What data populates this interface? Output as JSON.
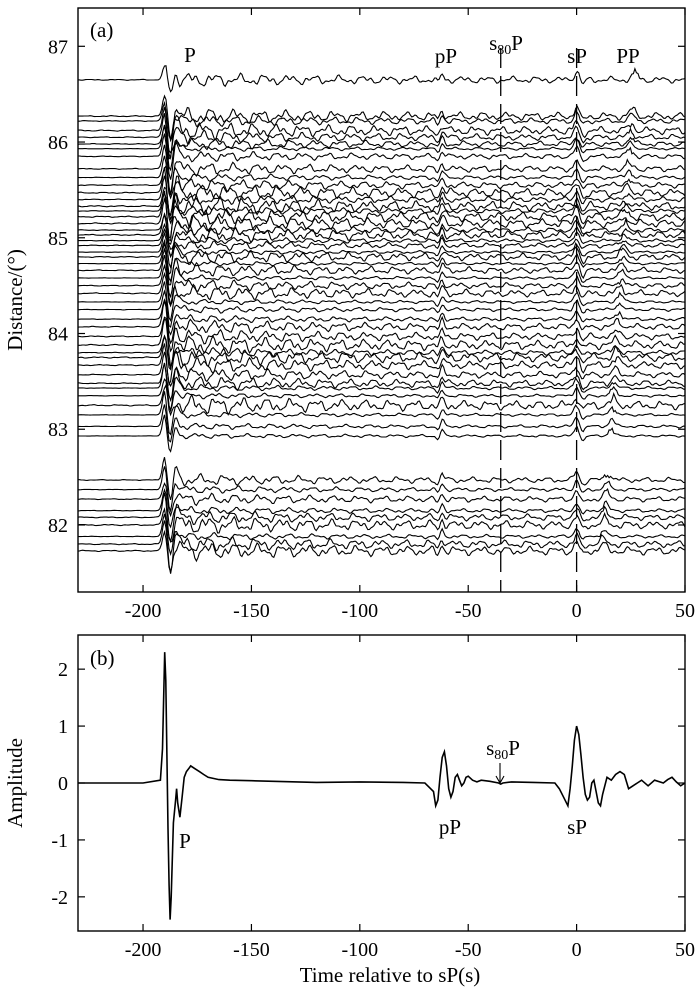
{
  "chart_data": [
    {
      "panel": "(a)",
      "type": "line",
      "ylabel": "Distance/(°)",
      "xlim": [
        -230,
        50
      ],
      "ylim": [
        81.3,
        87.4
      ],
      "xticks": [
        -200,
        -150,
        -100,
        -50,
        0,
        50
      ],
      "yticks": [
        82,
        83,
        84,
        85,
        86,
        87
      ],
      "trace_offsets_deg": [
        86.65,
        86.27,
        86.22,
        86.12,
        86.05,
        85.98,
        85.93,
        85.85,
        85.72,
        85.63,
        85.55,
        85.47,
        85.4,
        85.33,
        85.28,
        85.22,
        85.15,
        85.08,
        85.03,
        84.97,
        84.92,
        84.85,
        84.8,
        84.73,
        84.66,
        84.58,
        84.5,
        84.42,
        84.33,
        84.25,
        84.15,
        84.07,
        83.97,
        83.88,
        83.8,
        83.75,
        83.67,
        83.57,
        83.48,
        83.43,
        83.35,
        83.25,
        83.15,
        83.03,
        82.93,
        82.47,
        82.37,
        82.27,
        82.15,
        82.08,
        82.0,
        81.88,
        81.8,
        81.73
      ],
      "phase_times_s": {
        "P": -190,
        "pP": -62,
        "s80P": -35,
        "sP": 0,
        "PP": 22
      },
      "phase_labels": [
        {
          "text": "P",
          "key": "P"
        },
        {
          "text": "pP",
          "key": "pP"
        },
        {
          "text": "s",
          "sub": "80",
          "tail": "P",
          "key": "s80P"
        },
        {
          "text": "sP",
          "key": "sP"
        },
        {
          "text": "PP",
          "key": "PP"
        }
      ],
      "dashed_markers_s": [
        -35,
        0
      ]
    },
    {
      "panel": "(b)",
      "type": "line",
      "xlabel": "Time relative to sP(s)",
      "ylabel": "Amplitude",
      "xlim": [
        -230,
        50
      ],
      "ylim": [
        -2.6,
        2.6
      ],
      "xticks": [
        -200,
        -150,
        -100,
        -50,
        0,
        50
      ],
      "yticks": [
        -2,
        -1,
        0,
        1,
        2
      ],
      "series": [
        {
          "x": [
            -230,
            -200,
            -192,
            -191,
            -190,
            -189.5,
            -189,
            -188.5,
            -188,
            -187.5,
            -187,
            -186,
            -185,
            -184.5,
            -184,
            -183,
            -182,
            -181,
            -180,
            -179,
            -178,
            -176,
            -174,
            -172,
            -170,
            -165,
            -160,
            -150,
            -140,
            -120,
            -100,
            -80,
            -70,
            -66,
            -65,
            -64,
            -63,
            -62,
            -61,
            -60,
            -59,
            -58,
            -57,
            -56,
            -55,
            -54,
            -53,
            -52,
            -51,
            -50,
            -48,
            -46,
            -44,
            -40,
            -36,
            -35,
            -34,
            -30,
            -20,
            -10,
            -8,
            -6,
            -4,
            -3,
            -2,
            -1,
            0,
            1,
            2,
            3,
            4,
            5,
            6,
            7,
            8,
            9,
            10,
            11,
            12,
            14,
            16,
            18,
            20,
            22,
            24,
            26,
            28,
            30,
            33,
            36,
            40,
            42,
            44,
            46,
            48,
            50
          ],
          "y": [
            0,
            0,
            0.05,
            0.6,
            2.3,
            1.8,
            0.5,
            -0.8,
            -1.8,
            -2.4,
            -2.0,
            -0.7,
            -0.3,
            -0.1,
            -0.35,
            -0.6,
            -0.25,
            0.1,
            0.2,
            0.25,
            0.3,
            0.25,
            0.2,
            0.15,
            0.1,
            0.06,
            0.05,
            0.04,
            0.03,
            0.01,
            0.02,
            0.01,
            0.0,
            -0.15,
            -0.4,
            -0.3,
            0.1,
            0.45,
            0.55,
            0.3,
            -0.1,
            -0.25,
            -0.15,
            0.1,
            0.15,
            0.05,
            -0.05,
            0.0,
            0.1,
            0.12,
            0.05,
            0.02,
            0.05,
            0.03,
            0.0,
            -0.02,
            0.0,
            0.02,
            0.01,
            0.0,
            -0.1,
            -0.25,
            -0.4,
            -0.1,
            0.3,
            0.75,
            1.0,
            0.85,
            0.5,
            0.1,
            -0.2,
            -0.3,
            -0.25,
            0.0,
            0.05,
            -0.15,
            -0.35,
            -0.4,
            -0.2,
            0.1,
            0.05,
            0.15,
            0.2,
            0.15,
            -0.1,
            -0.05,
            0.0,
            0.05,
            -0.05,
            0.05,
            0.0,
            0.06,
            0.1,
            0.02,
            -0.05,
            0.0
          ]
        }
      ],
      "phase_labels": [
        {
          "text": "P"
        },
        {
          "text": "pP"
        },
        {
          "text": "s",
          "sub": "80",
          "tail": "P"
        },
        {
          "text": "sP"
        }
      ]
    }
  ]
}
